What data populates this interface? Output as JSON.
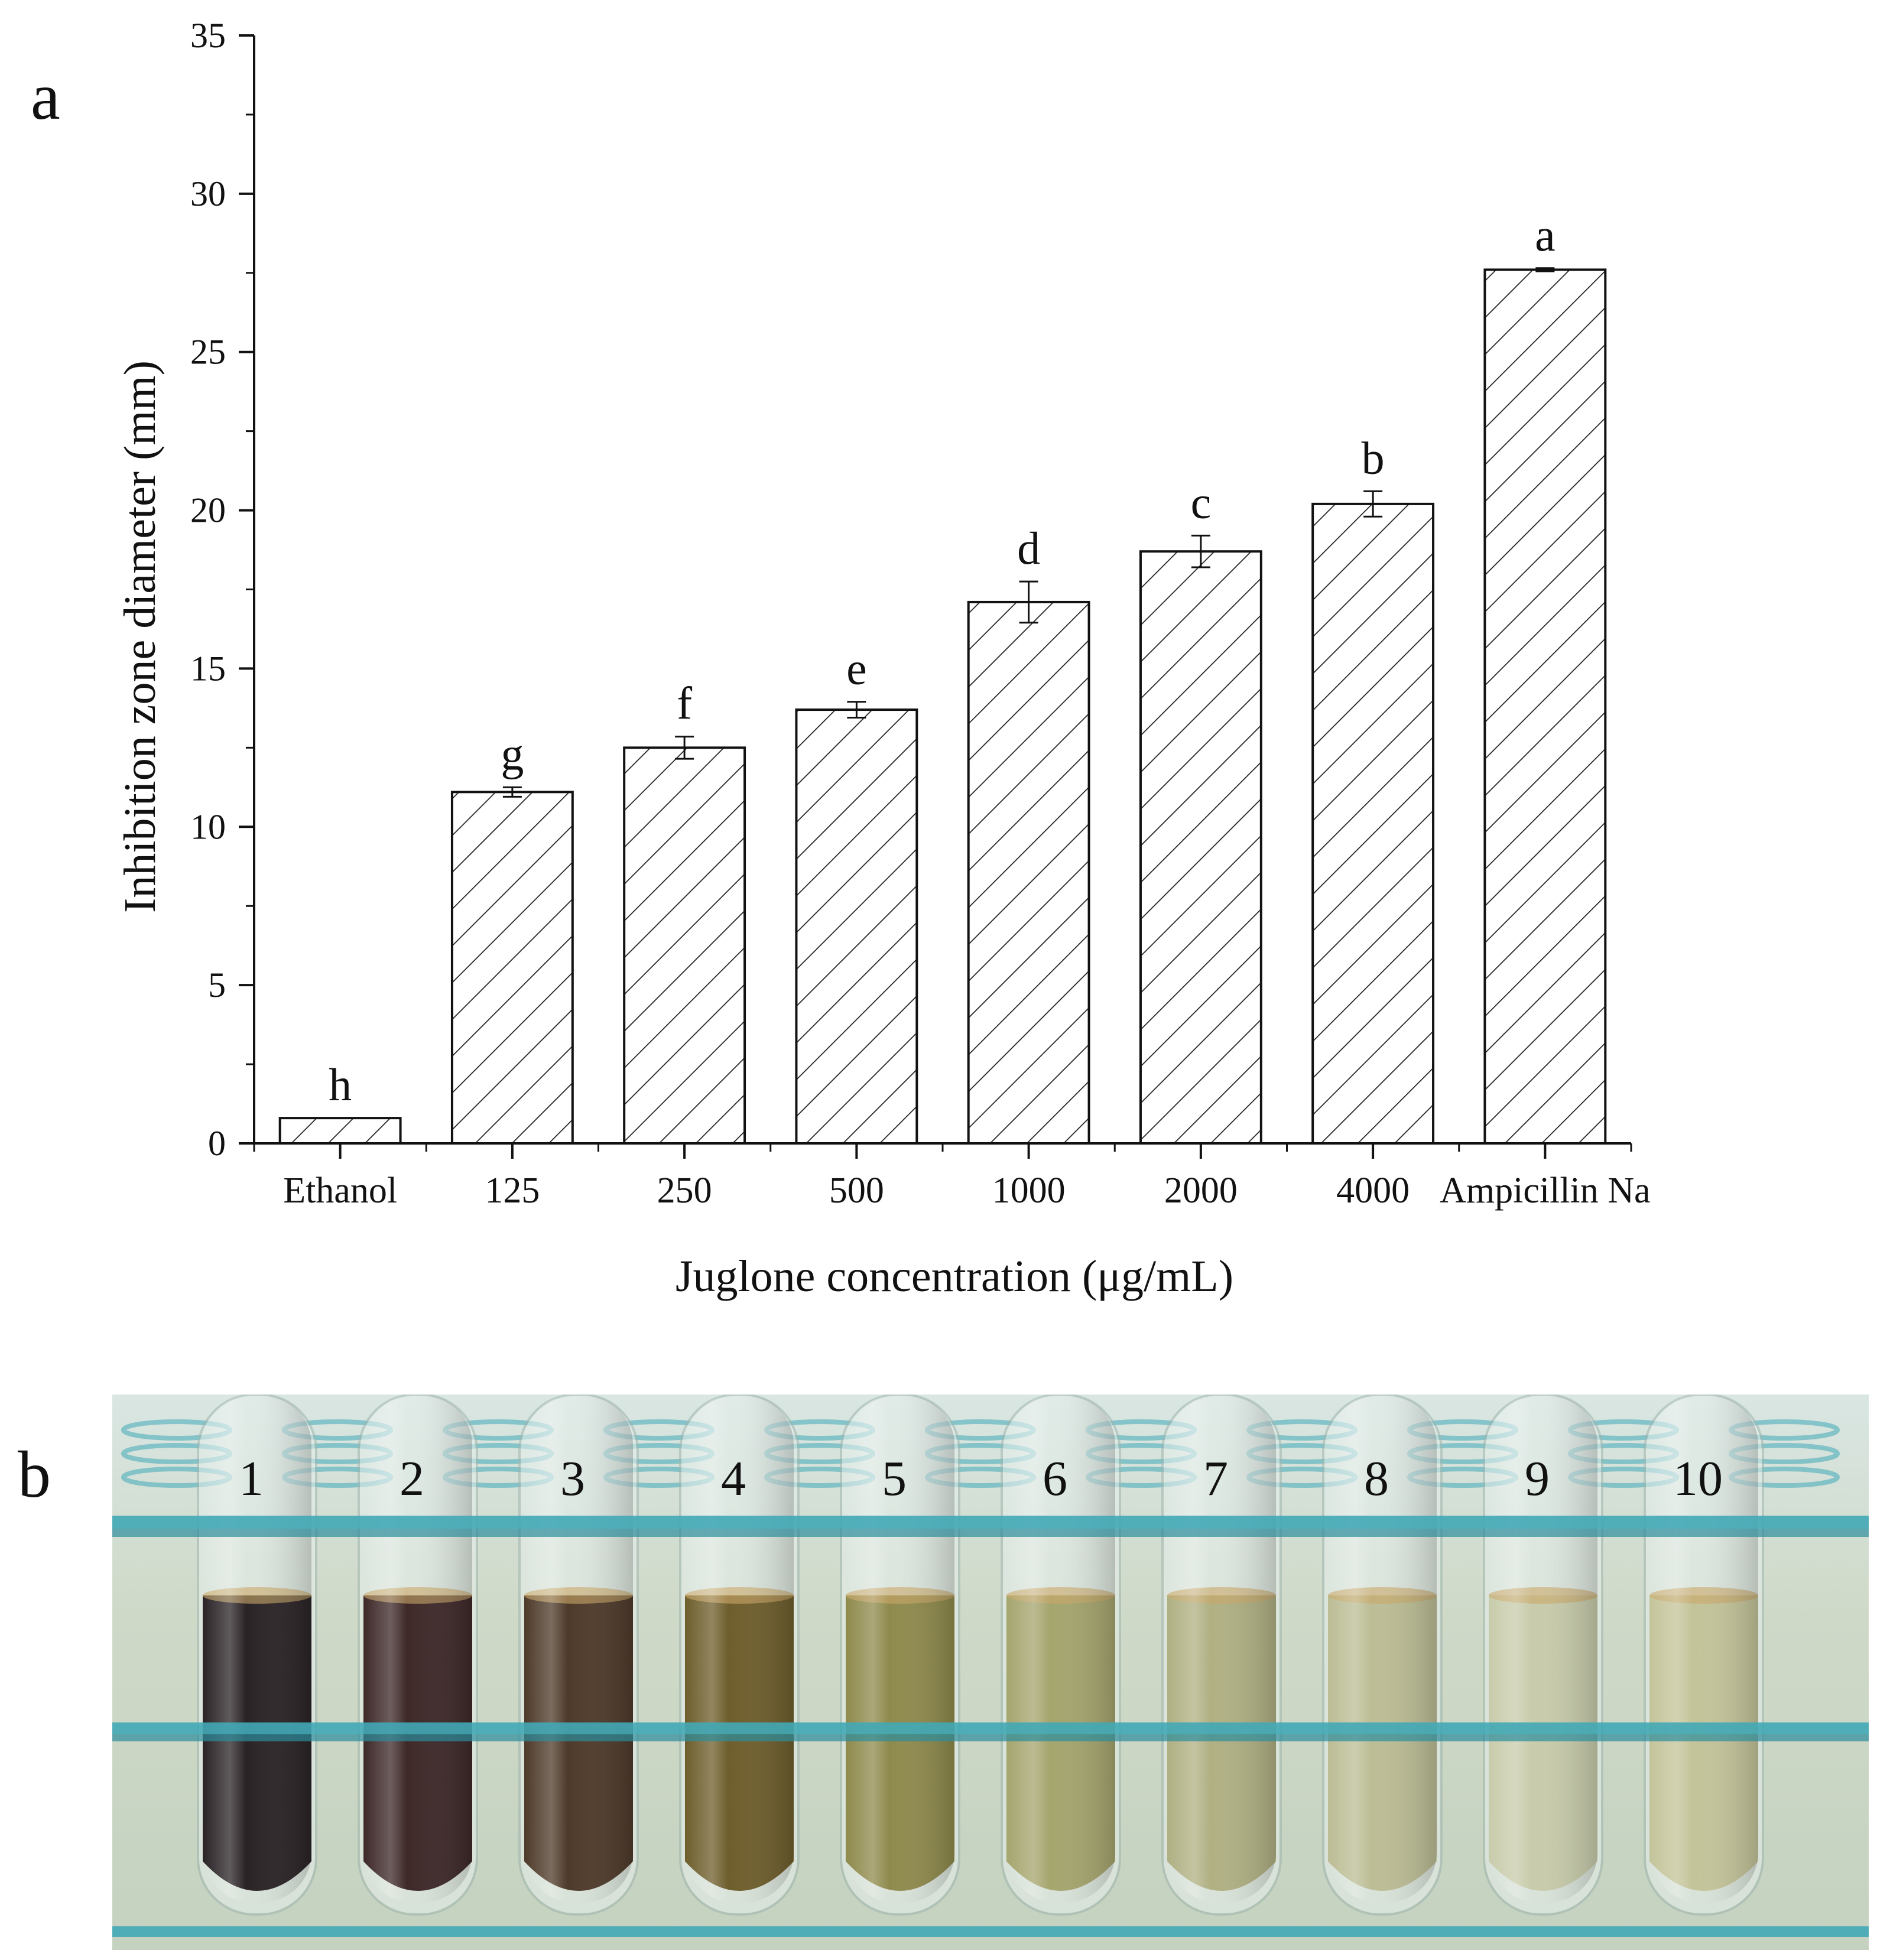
{
  "panels": {
    "a": "a",
    "b": "b"
  },
  "chart_data": {
    "type": "bar",
    "title": "",
    "xlabel": "Juglone concentration (μg/mL)",
    "ylabel": "Inhibition zone diameter (mm)",
    "ylim": [
      0,
      35
    ],
    "yticks": [
      0,
      5,
      10,
      15,
      20,
      25,
      30,
      35
    ],
    "grid": false,
    "bar_pattern": "diagonal-hatch",
    "categories": [
      "Ethanol",
      "125",
      "250",
      "500",
      "1000",
      "2000",
      "4000",
      "Ampicillin Na"
    ],
    "values": [
      0.8,
      11.1,
      12.5,
      13.7,
      17.1,
      18.7,
      20.2,
      27.6
    ],
    "errors": [
      0.0,
      0.15,
      0.35,
      0.25,
      0.65,
      0.5,
      0.4,
      0.05
    ],
    "significance": [
      "h",
      "g",
      "f",
      "e",
      "d",
      "c",
      "b",
      "a"
    ]
  },
  "photo": {
    "tube_labels": [
      "1",
      "2",
      "3",
      "4",
      "5",
      "6",
      "7",
      "8",
      "9",
      "10"
    ],
    "liquid_colors": [
      "#2a2326",
      "#3e2828",
      "#4e3a2a",
      "#6e5e2c",
      "#8f8a4c",
      "#a5a56e",
      "#b0b083",
      "#bcbd95",
      "#c8ccab",
      "#c4c49a"
    ],
    "rack_color": "#3fa9b8"
  }
}
